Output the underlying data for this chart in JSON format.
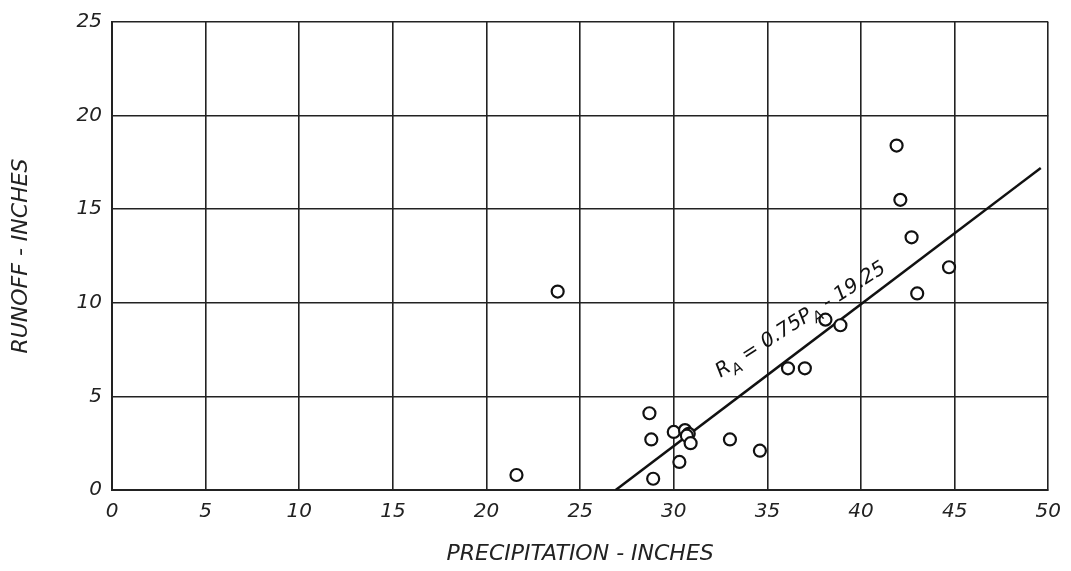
{
  "chart_data": {
    "type": "scatter",
    "xlabel": "PRECIPITATION - INCHES",
    "ylabel": "RUNOFF - INCHES",
    "xlim": [
      0,
      50
    ],
    "xticks": [
      0,
      5,
      10,
      15,
      20,
      25,
      30,
      35,
      40,
      45,
      50
    ],
    "ylim": [
      0,
      25
    ],
    "yticks": [
      0,
      5,
      10,
      15,
      20,
      25
    ],
    "grid": true,
    "legend": false,
    "marker": "circle",
    "series": [
      {
        "color": "#111111",
        "x": [
          21.6,
          23.8,
          28.7,
          28.8,
          28.9,
          30.0,
          30.3,
          30.6,
          30.8,
          30.7,
          30.9,
          33.0,
          34.6,
          36.1,
          37.0,
          38.1,
          38.9,
          41.9,
          42.1,
          42.7,
          43.0,
          44.7
        ],
        "values": [
          0.8,
          10.6,
          4.1,
          2.7,
          0.6,
          3.1,
          1.5,
          3.2,
          3.0,
          2.9,
          2.5,
          2.7,
          2.1,
          6.5,
          6.5,
          9.1,
          8.8,
          18.4,
          15.5,
          13.5,
          10.5,
          11.9
        ]
      },
      {
        "type": "line",
        "color": "#111111",
        "marker": "none",
        "x": [
          26.9,
          49.6
        ],
        "values": [
          0,
          17.2
        ]
      }
    ],
    "annotations": [
      "R$_{A}$ = 0.75P$_{A}$ - 19.25"
    ]
  }
}
